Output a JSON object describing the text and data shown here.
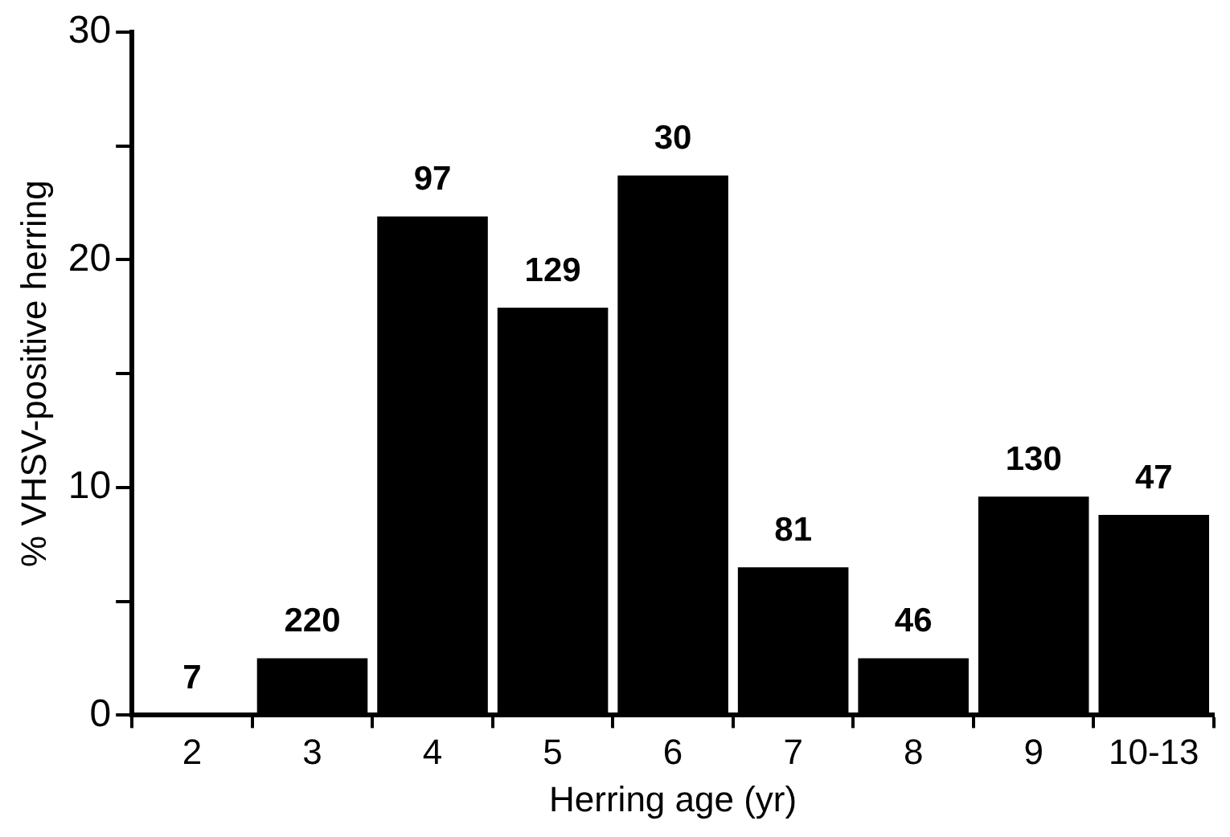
{
  "chart_data": {
    "type": "bar",
    "xlabel": "Herring age (yr)",
    "ylabel": "% VHSV-positive herring",
    "categories": [
      "2",
      "3",
      "4",
      "5",
      "6",
      "7",
      "8",
      "9",
      "10-13"
    ],
    "values": [
      0,
      2.5,
      21.9,
      17.9,
      23.7,
      6.5,
      2.5,
      9.6,
      8.8
    ],
    "annotations": [
      {
        "text": "7",
        "x": "2",
        "y": 0
      },
      {
        "text": "220",
        "x": "3",
        "y": 2.5
      },
      {
        "text": "97",
        "x": "4",
        "y": 21.9
      },
      {
        "text": "129",
        "x": "5",
        "y": 17.9
      },
      {
        "text": "30",
        "x": "6",
        "y": 23.7
      },
      {
        "text": "81",
        "x": "7",
        "y": 6.5
      },
      {
        "text": "46",
        "x": "8",
        "y": 2.5
      },
      {
        "text": "130",
        "x": "9",
        "y": 9.6
      },
      {
        "text": "47",
        "x": "10-13",
        "y": 8.8
      }
    ],
    "color": "#000000",
    "ylim": [
      0,
      30
    ],
    "yticks": [
      0,
      {
        "value": 5,
        "label": null
      },
      10,
      {
        "value": 15,
        "label": null
      },
      20,
      {
        "value": 25,
        "label": null
      },
      30
    ],
    "grid": false,
    "legend": false
  }
}
